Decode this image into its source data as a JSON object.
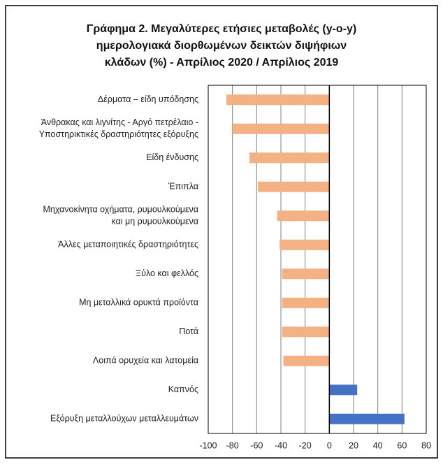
{
  "chart_data": {
    "type": "bar",
    "orientation": "horizontal",
    "title": "Γράφημα 2. Μεγαλύτερες ετήσιες μεταβολές (y-o-y)\nημερολογιακά διορθωμένων δεικτών διψήφιων\nκλάδων (%) - Απρίλιος 2020 / Απρίλιος 2019",
    "categories": [
      "Δέρματα – είδη υπόδησης",
      "Άνθρακας και λιγνίτης - Αργό πετρέλαιο -\nΥποστηρικτικές δραστηριότητες εξόρυξης",
      "Είδη ένδυσης",
      "Έπιπλα",
      "Μηχανοκίνητα οχήματα, ρυμουλκούμενα\nκαι μη ρυμουλκούμενα",
      "Άλλες μεταποιητικές δραστηριότητες",
      "Ξύλο και φελλός",
      "Μη μεταλλικά ορυκτά προϊόντα",
      "Ποτά",
      "Λοιπά ορυχεία και λατομεία",
      "Καπνός",
      "Εξόρυξη μεταλλούχων μεταλλευμάτων"
    ],
    "values": [
      -85,
      -80,
      -66,
      -59,
      -43,
      -41,
      -39,
      -39,
      -39,
      -38,
      23,
      62
    ],
    "colors": [
      "#f4b183",
      "#f4b183",
      "#f4b183",
      "#f4b183",
      "#f4b183",
      "#f4b183",
      "#f4b183",
      "#f4b183",
      "#f4b183",
      "#f4b183",
      "#4472c4",
      "#4472c4"
    ],
    "xlim": [
      -100,
      80
    ],
    "xticks": [
      -100,
      -80,
      -60,
      -40,
      -20,
      0,
      20,
      40,
      60,
      80
    ],
    "grid": true
  }
}
